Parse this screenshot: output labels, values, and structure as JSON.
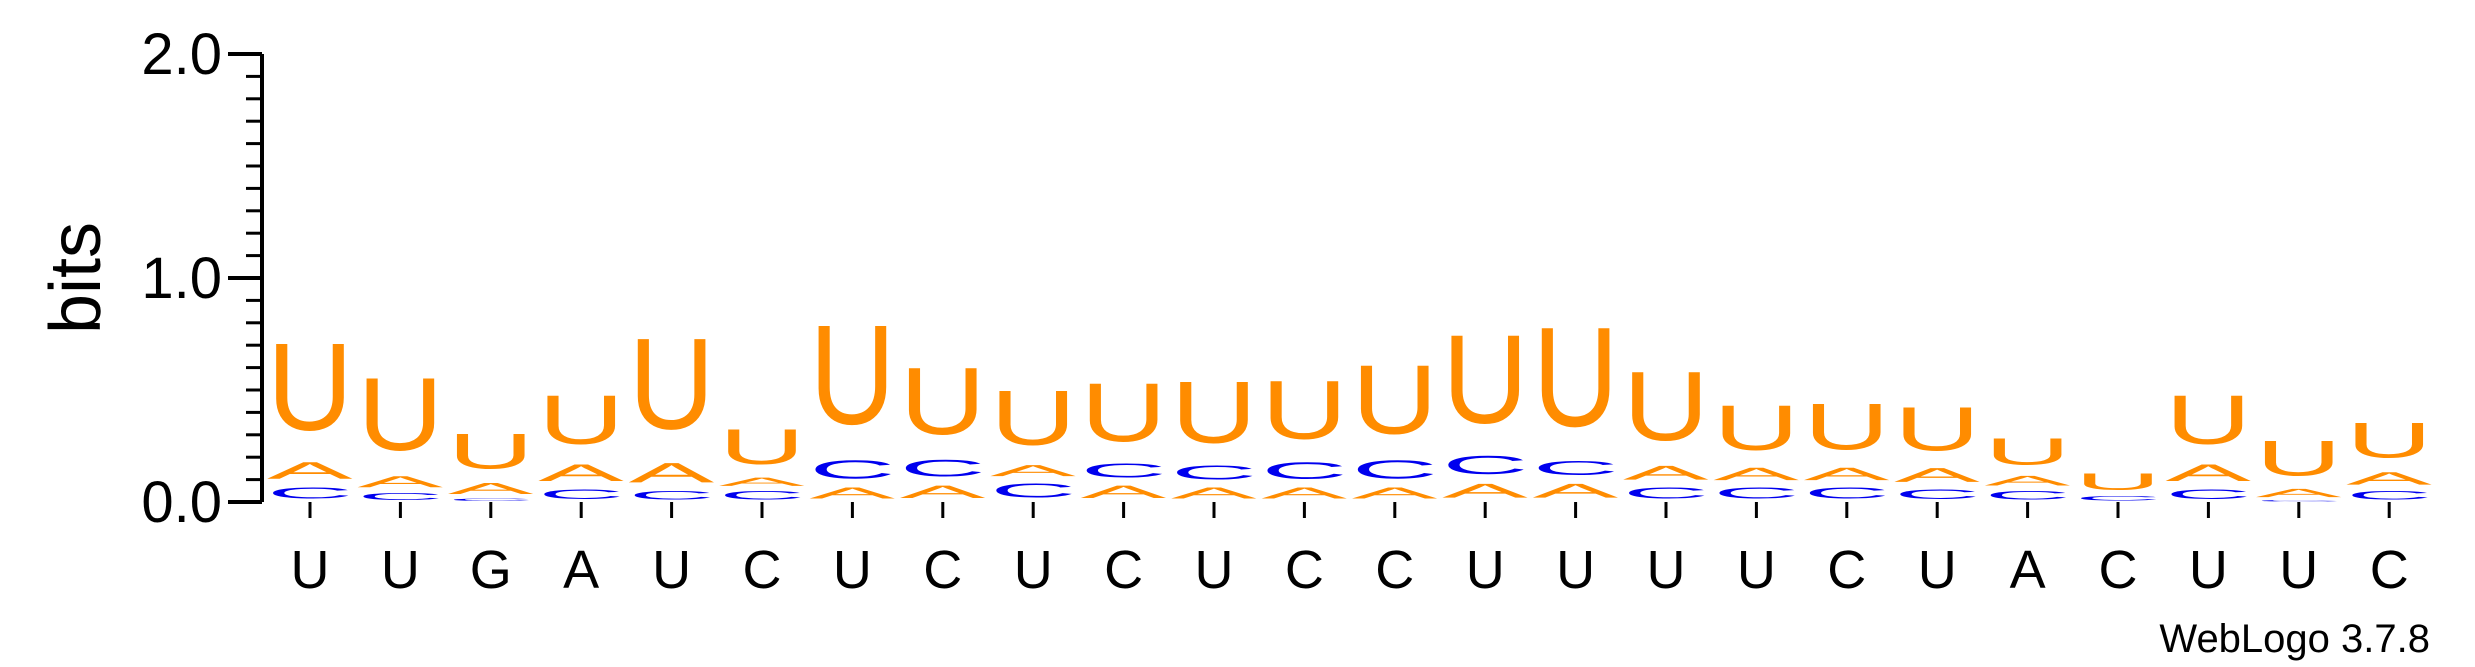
{
  "chart_data": {
    "type": "sequence-logo",
    "ylabel": "bits",
    "ylim": [
      0,
      2.0
    ],
    "yticks": [
      "0.0",
      "1.0",
      "2.0"
    ],
    "credit": "WebLogo 3.7.8",
    "colors": {
      "U": "#ff8c00",
      "A": "#ff8c00",
      "G": "#ff8c00",
      "C": "#0000ee"
    },
    "positions": [
      {
        "label": "U",
        "stack": [
          [
            "C",
            0.08
          ],
          [
            "A",
            0.12
          ],
          [
            "U",
            0.62
          ]
        ]
      },
      {
        "label": "U",
        "stack": [
          [
            "C",
            0.05
          ],
          [
            "A",
            0.08
          ],
          [
            "U",
            0.52
          ]
        ]
      },
      {
        "label": "G",
        "stack": [
          [
            "C",
            0.02
          ],
          [
            "A",
            0.08
          ],
          [
            "U",
            0.25
          ]
        ]
      },
      {
        "label": "A",
        "stack": [
          [
            "C",
            0.07
          ],
          [
            "A",
            0.12
          ],
          [
            "U",
            0.35
          ]
        ]
      },
      {
        "label": "U",
        "stack": [
          [
            "C",
            0.06
          ],
          [
            "A",
            0.14
          ],
          [
            "U",
            0.65
          ]
        ]
      },
      {
        "label": "C",
        "stack": [
          [
            "C",
            0.06
          ],
          [
            "A",
            0.06
          ],
          [
            "U",
            0.25
          ]
        ]
      },
      {
        "label": "U",
        "stack": [
          [
            "A",
            0.08
          ],
          [
            "C",
            0.13
          ],
          [
            "U",
            0.71
          ]
        ]
      },
      {
        "label": "C",
        "stack": [
          [
            "A",
            0.09
          ],
          [
            "C",
            0.12
          ],
          [
            "U",
            0.48
          ]
        ]
      },
      {
        "label": "U",
        "stack": [
          [
            "C",
            0.1
          ],
          [
            "A",
            0.08
          ],
          [
            "U",
            0.39
          ]
        ]
      },
      {
        "label": "C",
        "stack": [
          [
            "A",
            0.09
          ],
          [
            "C",
            0.1
          ],
          [
            "U",
            0.42
          ]
        ]
      },
      {
        "label": "U",
        "stack": [
          [
            "A",
            0.08
          ],
          [
            "C",
            0.1
          ],
          [
            "U",
            0.44
          ]
        ]
      },
      {
        "label": "C",
        "stack": [
          [
            "A",
            0.08
          ],
          [
            "C",
            0.12
          ],
          [
            "U",
            0.42
          ]
        ]
      },
      {
        "label": "C",
        "stack": [
          [
            "A",
            0.08
          ],
          [
            "C",
            0.13
          ],
          [
            "U",
            0.49
          ]
        ]
      },
      {
        "label": "U",
        "stack": [
          [
            "A",
            0.1
          ],
          [
            "C",
            0.13
          ],
          [
            "U",
            0.63
          ]
        ]
      },
      {
        "label": "U",
        "stack": [
          [
            "A",
            0.1
          ],
          [
            "C",
            0.1
          ],
          [
            "U",
            0.71
          ]
        ]
      },
      {
        "label": "U",
        "stack": [
          [
            "C",
            0.08
          ],
          [
            "A",
            0.1
          ],
          [
            "U",
            0.49
          ]
        ]
      },
      {
        "label": "U",
        "stack": [
          [
            "C",
            0.08
          ],
          [
            "A",
            0.09
          ],
          [
            "U",
            0.32
          ]
        ]
      },
      {
        "label": "C",
        "stack": [
          [
            "C",
            0.08
          ],
          [
            "A",
            0.09
          ],
          [
            "U",
            0.33
          ]
        ]
      },
      {
        "label": "U",
        "stack": [
          [
            "C",
            0.07
          ],
          [
            "A",
            0.1
          ],
          [
            "U",
            0.31
          ]
        ]
      },
      {
        "label": "A",
        "stack": [
          [
            "C",
            0.06
          ],
          [
            "A",
            0.07
          ],
          [
            "U",
            0.19
          ]
        ]
      },
      {
        "label": "C",
        "stack": [
          [
            "C",
            0.03
          ],
          [
            "A",
            0.0
          ],
          [
            "U",
            0.12
          ]
        ]
      },
      {
        "label": "U",
        "stack": [
          [
            "C",
            0.07
          ],
          [
            "A",
            0.12
          ],
          [
            "U",
            0.35
          ]
        ]
      },
      {
        "label": "U",
        "stack": [
          [
            "C",
            0.01
          ],
          [
            "A",
            0.06
          ],
          [
            "U",
            0.25
          ]
        ]
      },
      {
        "label": "C",
        "stack": [
          [
            "C",
            0.06
          ],
          [
            "A",
            0.09
          ],
          [
            "U",
            0.25
          ]
        ]
      }
    ]
  }
}
